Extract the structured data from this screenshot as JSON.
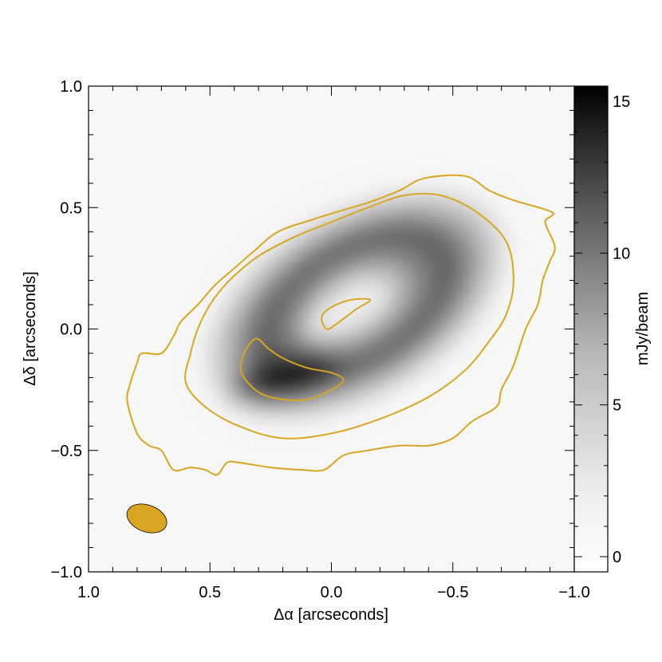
{
  "chart_data": {
    "type": "heatmap",
    "title": "",
    "xlabel": "Δα  [arcseconds]",
    "ylabel": "Δδ  [arcseconds]",
    "xlim": [
      1.0,
      -1.0
    ],
    "ylim": [
      -1.0,
      1.0
    ],
    "xticks": [
      {
        "value": 1.0,
        "label": "1.0"
      },
      {
        "value": 0.5,
        "label": "0.5"
      },
      {
        "value": 0.0,
        "label": "0.0"
      },
      {
        "value": -0.5,
        "label": "−0.5"
      },
      {
        "value": -1.0,
        "label": "−1.0"
      }
    ],
    "yticks": [
      {
        "value": -1.0,
        "label": "−1.0"
      },
      {
        "value": -0.5,
        "label": "−0.5"
      },
      {
        "value": 0.0,
        "label": "0.0"
      },
      {
        "value": 0.5,
        "label": "0.5"
      },
      {
        "value": 1.0,
        "label": "1.0"
      }
    ],
    "colorbar": {
      "label": "mJy/beam",
      "range": [
        -0.5,
        15.5
      ],
      "ticks": [
        {
          "value": 0,
          "label": "0"
        },
        {
          "value": 5,
          "label": "5"
        },
        {
          "value": 10,
          "label": "10"
        },
        {
          "value": 15,
          "label": "15"
        }
      ],
      "colormap": "white-to-black"
    },
    "contour_color": "#DAA520",
    "contours": [
      {
        "name": "outer-contour",
        "points": [
          [
            0.83,
            -0.23
          ],
          [
            0.8,
            -0.14
          ],
          [
            0.78,
            -0.1
          ],
          [
            0.7,
            -0.1
          ],
          [
            0.65,
            -0.03
          ],
          [
            0.62,
            0.03
          ],
          [
            0.55,
            0.1
          ],
          [
            0.48,
            0.18
          ],
          [
            0.4,
            0.25
          ],
          [
            0.32,
            0.32
          ],
          [
            0.22,
            0.4
          ],
          [
            0.08,
            0.45
          ],
          [
            -0.05,
            0.49
          ],
          [
            -0.15,
            0.52
          ],
          [
            -0.28,
            0.57
          ],
          [
            -0.38,
            0.62
          ],
          [
            -0.55,
            0.63
          ],
          [
            -0.65,
            0.57
          ],
          [
            -0.75,
            0.53
          ],
          [
            -0.91,
            0.48
          ],
          [
            -0.88,
            0.44
          ],
          [
            -0.92,
            0.34
          ],
          [
            -0.9,
            0.28
          ],
          [
            -0.87,
            0.2
          ],
          [
            -0.85,
            0.1
          ],
          [
            -0.8,
            0.0
          ],
          [
            -0.75,
            -0.15
          ],
          [
            -0.7,
            -0.25
          ],
          [
            -0.68,
            -0.32
          ],
          [
            -0.58,
            -0.38
          ],
          [
            -0.5,
            -0.45
          ],
          [
            -0.4,
            -0.48
          ],
          [
            -0.28,
            -0.48
          ],
          [
            -0.15,
            -0.5
          ],
          [
            -0.05,
            -0.52
          ],
          [
            0.03,
            -0.58
          ],
          [
            0.12,
            -0.58
          ],
          [
            0.25,
            -0.57
          ],
          [
            0.38,
            -0.55
          ],
          [
            0.43,
            -0.55
          ],
          [
            0.47,
            -0.6
          ],
          [
            0.52,
            -0.58
          ],
          [
            0.58,
            -0.57
          ],
          [
            0.65,
            -0.58
          ],
          [
            0.7,
            -0.5
          ],
          [
            0.75,
            -0.48
          ],
          [
            0.8,
            -0.43
          ],
          [
            0.84,
            -0.3
          ]
        ]
      },
      {
        "name": "middle-contour",
        "points": [
          [
            0.6,
            -0.22
          ],
          [
            0.58,
            -0.1
          ],
          [
            0.55,
            0.0
          ],
          [
            0.5,
            0.1
          ],
          [
            0.42,
            0.2
          ],
          [
            0.3,
            0.3
          ],
          [
            0.15,
            0.38
          ],
          [
            0.0,
            0.44
          ],
          [
            -0.15,
            0.5
          ],
          [
            -0.3,
            0.55
          ],
          [
            -0.45,
            0.55
          ],
          [
            -0.6,
            0.48
          ],
          [
            -0.72,
            0.36
          ],
          [
            -0.75,
            0.2
          ],
          [
            -0.72,
            0.06
          ],
          [
            -0.65,
            -0.05
          ],
          [
            -0.55,
            -0.17
          ],
          [
            -0.4,
            -0.28
          ],
          [
            -0.2,
            -0.37
          ],
          [
            0.0,
            -0.43
          ],
          [
            0.2,
            -0.45
          ],
          [
            0.38,
            -0.4
          ],
          [
            0.52,
            -0.32
          ]
        ]
      },
      {
        "name": "inner-hole-contour",
        "points": [
          [
            -0.16,
            0.12
          ],
          [
            -0.1,
            0.08
          ],
          [
            -0.02,
            0.02
          ],
          [
            0.02,
            0.0
          ],
          [
            0.04,
            0.05
          ],
          [
            0.0,
            0.09
          ],
          [
            -0.08,
            0.12
          ]
        ]
      },
      {
        "name": "peak-contour",
        "points": [
          [
            0.31,
            -0.04
          ],
          [
            0.26,
            -0.08
          ],
          [
            0.2,
            -0.12
          ],
          [
            0.1,
            -0.16
          ],
          [
            0.0,
            -0.18
          ],
          [
            -0.05,
            -0.21
          ],
          [
            0.0,
            -0.25
          ],
          [
            0.1,
            -0.29
          ],
          [
            0.2,
            -0.29
          ],
          [
            0.3,
            -0.26
          ],
          [
            0.37,
            -0.18
          ],
          [
            0.36,
            -0.1
          ]
        ]
      }
    ],
    "beam": {
      "center": [
        0.76,
        -0.78
      ],
      "major": 0.085,
      "minor": 0.055,
      "angle_deg": 20,
      "fill": "#DAA520"
    }
  }
}
